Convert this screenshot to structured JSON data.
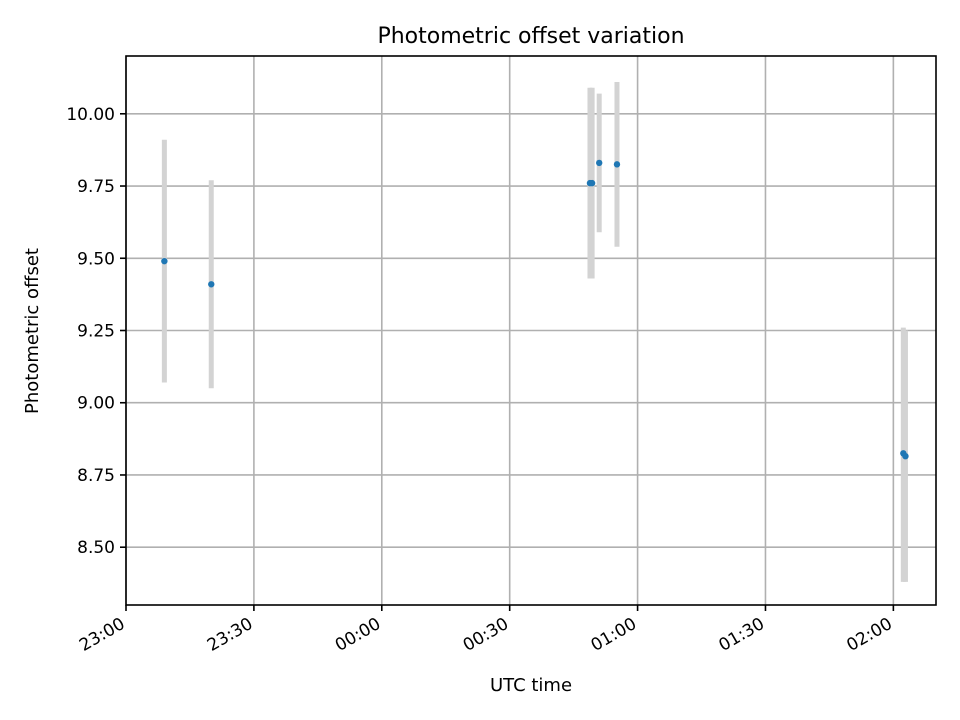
{
  "chart_data": {
    "type": "scatter",
    "title": "Photometric offset variation",
    "xlabel": "UTC time",
    "ylabel": "Photometric offset",
    "x_axis_type": "time",
    "xlim": [
      "2000-01-01T23:00:00",
      "2000-01-02T02:10:00"
    ],
    "ylim": [
      8.3,
      10.2
    ],
    "x_ticks": [
      {
        "value": "2000-01-01T23:00:00",
        "label": "23:00"
      },
      {
        "value": "2000-01-01T23:30:00",
        "label": "23:30"
      },
      {
        "value": "2000-01-02T00:00:00",
        "label": "00:00"
      },
      {
        "value": "2000-01-02T00:30:00",
        "label": "00:30"
      },
      {
        "value": "2000-01-02T01:00:00",
        "label": "01:00"
      },
      {
        "value": "2000-01-02T01:30:00",
        "label": "01:30"
      },
      {
        "value": "2000-01-02T02:00:00",
        "label": "02:00"
      }
    ],
    "y_ticks": [
      {
        "value": 8.5,
        "label": "8.50"
      },
      {
        "value": 8.75,
        "label": "8.75"
      },
      {
        "value": 9.0,
        "label": "9.00"
      },
      {
        "value": 9.25,
        "label": "9.25"
      },
      {
        "value": 9.5,
        "label": "9.50"
      },
      {
        "value": 9.75,
        "label": "9.75"
      },
      {
        "value": 10.0,
        "label": "10.00"
      }
    ],
    "grid": true,
    "marker_color": "#1f77b4",
    "errorbar_color": "#d3d3d3",
    "points": [
      {
        "x": "2000-01-01T23:09:00",
        "y": 9.49,
        "ylow": 9.07,
        "yhigh": 9.91
      },
      {
        "x": "2000-01-01T23:20:00",
        "y": 9.41,
        "ylow": 9.05,
        "yhigh": 9.77
      },
      {
        "x": "2000-01-02T00:48:50",
        "y": 9.76,
        "ylow": 9.43,
        "yhigh": 10.09
      },
      {
        "x": "2000-01-02T00:49:20",
        "y": 9.76,
        "ylow": 9.43,
        "yhigh": 10.09
      },
      {
        "x": "2000-01-02T00:51:00",
        "y": 9.83,
        "ylow": 9.59,
        "yhigh": 10.07
      },
      {
        "x": "2000-01-02T00:55:10",
        "y": 9.825,
        "ylow": 9.54,
        "yhigh": 10.11
      },
      {
        "x": "2000-01-02T02:02:20",
        "y": 8.825,
        "ylow": 8.38,
        "yhigh": 9.26
      },
      {
        "x": "2000-01-02T02:02:50",
        "y": 8.815,
        "ylow": 8.38,
        "yhigh": 9.25
      }
    ]
  }
}
